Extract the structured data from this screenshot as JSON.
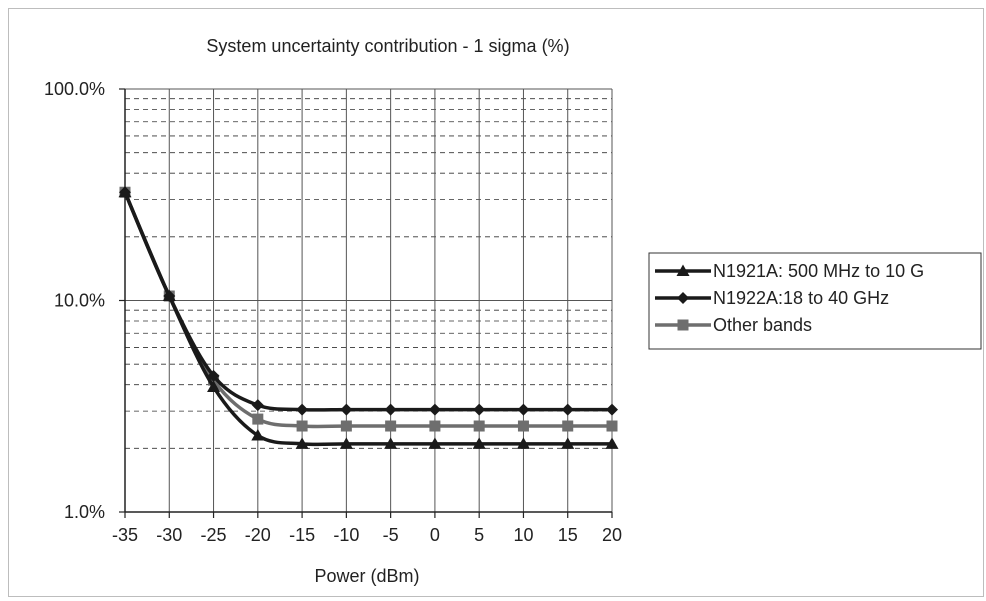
{
  "chart_data": {
    "type": "line",
    "title": "System uncertainty contribution - 1 sigma (%)",
    "xlabel": "Power (dBm)",
    "ylabel": "",
    "x": [
      -35,
      -30,
      -25,
      -20,
      -15,
      -10,
      -5,
      0,
      5,
      10,
      15,
      20
    ],
    "xlim": [
      -35,
      20
    ],
    "ylim": [
      1,
      100
    ],
    "y_scale": "log",
    "x_ticks": [
      "-35",
      "-30",
      "-25",
      "-20",
      "-15",
      "-10",
      "-5",
      "0",
      "5",
      "10",
      "15",
      "20"
    ],
    "y_ticks": [
      {
        "value": 100,
        "label": "100.0%"
      },
      {
        "value": 10,
        "label": "10.0%"
      },
      {
        "value": 1,
        "label": "1.0%"
      }
    ],
    "grid": true,
    "legend_position": "right",
    "series": [
      {
        "name": "N1921A: 500 MHz to 10 G",
        "marker": "triangle",
        "color": "#1a1a1a",
        "values": [
          32.5,
          10.5,
          3.9,
          2.3,
          2.1,
          2.1,
          2.1,
          2.1,
          2.1,
          2.1,
          2.1,
          2.1
        ]
      },
      {
        "name": "N1922A:18 to 40 GHz",
        "marker": "diamond",
        "color": "#1a1a1a",
        "values": [
          32.5,
          10.5,
          4.4,
          3.2,
          3.05,
          3.05,
          3.05,
          3.05,
          3.05,
          3.05,
          3.05,
          3.05
        ]
      },
      {
        "name": "Other bands",
        "marker": "square",
        "color": "#6e6e6e",
        "values": [
          32.5,
          10.5,
          4.2,
          2.75,
          2.55,
          2.55,
          2.55,
          2.55,
          2.55,
          2.55,
          2.55,
          2.55
        ]
      }
    ]
  }
}
